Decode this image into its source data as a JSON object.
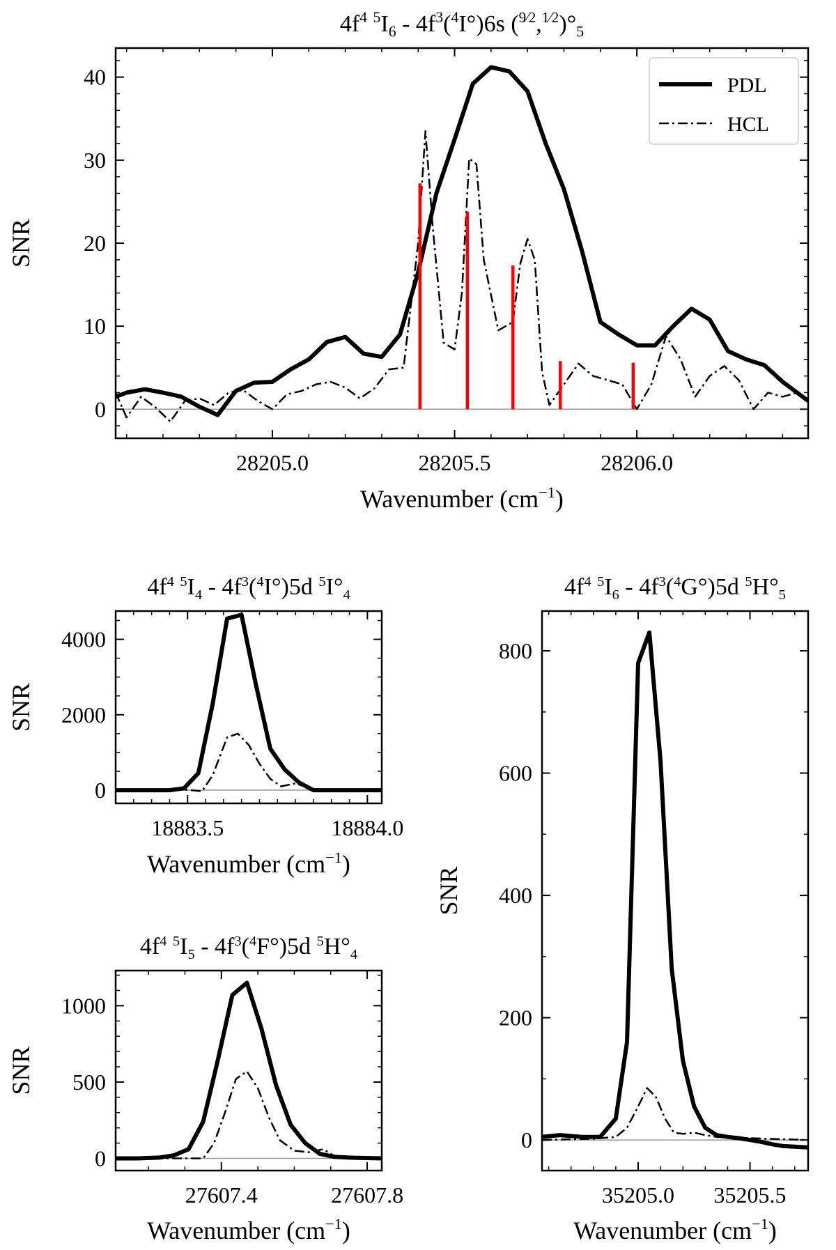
{
  "chart_data": [
    {
      "id": "top",
      "type": "line",
      "title": {
        "parts": [
          [
            "4f",
            ""
          ],
          [
            "4",
            "sup"
          ],
          [
            " ",
            ""
          ],
          [
            "5",
            "sup"
          ],
          [
            "I",
            ""
          ],
          [
            "6",
            "sub"
          ],
          [
            " - 4f",
            ""
          ],
          [
            "3",
            "sup"
          ],
          [
            "(",
            ""
          ],
          [
            "4",
            "sup"
          ],
          [
            "I°)6s (",
            ""
          ],
          [
            "9/2",
            "frac"
          ],
          [
            ",",
            ""
          ],
          [
            "1/2",
            "frac"
          ],
          [
            ")°",
            ""
          ],
          [
            "5",
            "sub"
          ]
        ]
      },
      "xlabel": "Wavenumber (cm",
      "xlabel_sup": "−1",
      "xlabel_tail": ")",
      "ylabel": "SNR",
      "xlim": [
        28204.57,
        28206.47
      ],
      "ylim": [
        -3.5,
        43.5
      ],
      "xticks": [
        28205.0,
        28205.5,
        28206.0
      ],
      "xtick_labels": [
        "28205.0",
        "28205.5",
        "28206.0"
      ],
      "yticks": [
        0,
        10,
        20,
        30,
        40
      ],
      "ytick_labels": [
        "0",
        "10",
        "20",
        "30",
        "40"
      ],
      "x_minor_step": 0.1,
      "y_minor_step": 2,
      "legend": {
        "placement": "top-right",
        "entries": [
          {
            "label": "PDL",
            "style": "solid"
          },
          {
            "label": "HCL",
            "style": "dashdot"
          }
        ]
      },
      "series": [
        {
          "name": "PDL",
          "style": "solid",
          "x": [
            28204.57,
            28204.6,
            28204.65,
            28204.7,
            28204.75,
            28204.8,
            28204.85,
            28204.9,
            28204.95,
            28205.0,
            28205.05,
            28205.1,
            28205.15,
            28205.2,
            28205.25,
            28205.3,
            28205.35,
            28205.4,
            28205.45,
            28205.5,
            28205.55,
            28205.6,
            28205.65,
            28205.7,
            28205.75,
            28205.8,
            28205.85,
            28205.9,
            28205.95,
            28206.0,
            28206.05,
            28206.1,
            28206.15,
            28206.2,
            28206.25,
            28206.3,
            28206.35,
            28206.4,
            28206.47
          ],
          "y": [
            1.5,
            2.0,
            2.4,
            2.0,
            1.5,
            0.3,
            -0.7,
            2.2,
            3.2,
            3.3,
            4.8,
            6.0,
            8.1,
            8.7,
            6.7,
            6.3,
            9.0,
            16.5,
            26.0,
            32.5,
            39.2,
            41.2,
            40.7,
            38.3,
            32.0,
            26.5,
            19.0,
            10.5,
            9.0,
            7.7,
            7.7,
            10.0,
            12.1,
            10.8,
            7.0,
            6.0,
            5.3,
            3.3,
            1.0
          ]
        },
        {
          "name": "HCL",
          "style": "dashdot",
          "x": [
            28204.57,
            28204.6,
            28204.64,
            28204.68,
            28204.72,
            28204.76,
            28204.8,
            28204.84,
            28204.88,
            28204.92,
            28204.96,
            28205.0,
            28205.04,
            28205.08,
            28205.12,
            28205.16,
            28205.2,
            28205.24,
            28205.28,
            28205.32,
            28205.36,
            28205.4,
            28205.42,
            28205.44,
            28205.47,
            28205.5,
            28205.52,
            28205.54,
            28205.56,
            28205.58,
            28205.62,
            28205.66,
            28205.68,
            28205.7,
            28205.72,
            28205.74,
            28205.76,
            28205.8,
            28205.84,
            28205.88,
            28205.92,
            28205.96,
            28206.0,
            28206.04,
            28206.08,
            28206.12,
            28206.16,
            28206.2,
            28206.24,
            28206.28,
            28206.32,
            28206.36,
            28206.4,
            28206.44,
            28206.47
          ],
          "y": [
            2.0,
            -1.0,
            1.5,
            0.2,
            -1.5,
            1.0,
            1.3,
            0.5,
            2.0,
            2.3,
            1.0,
            0.0,
            1.8,
            2.2,
            3.0,
            3.3,
            2.6,
            1.3,
            2.5,
            4.8,
            5.0,
            20.0,
            33.5,
            22.0,
            8.0,
            7.2,
            14.0,
            30.2,
            29.5,
            18.0,
            9.5,
            10.5,
            17.5,
            20.5,
            18.0,
            4.5,
            0.5,
            3.0,
            5.5,
            4.0,
            3.5,
            3.0,
            0.0,
            3.0,
            8.8,
            6.0,
            1.5,
            4.0,
            5.2,
            3.5,
            0.0,
            2.0,
            1.5,
            2.0,
            1.2
          ]
        }
      ],
      "markers": {
        "color": "#ff0000",
        "x": [
          28205.405,
          28205.535,
          28205.66,
          28205.79,
          28205.99
        ],
        "y": [
          27.2,
          23.8,
          17.3,
          5.8,
          5.6
        ]
      }
    },
    {
      "id": "left1",
      "type": "line",
      "title": {
        "parts": [
          [
            "4f",
            ""
          ],
          [
            "4",
            "sup"
          ],
          [
            " ",
            ""
          ],
          [
            "5",
            "sup"
          ],
          [
            "I",
            ""
          ],
          [
            "4",
            "sub"
          ],
          [
            " - 4f",
            ""
          ],
          [
            "3",
            "sup"
          ],
          [
            "(",
            ""
          ],
          [
            "4",
            "sup"
          ],
          [
            "I°)5d ",
            ""
          ],
          [
            "5",
            "sup"
          ],
          [
            "I°",
            ""
          ],
          [
            "4",
            "sub"
          ]
        ]
      },
      "xlabel": "Wavenumber (cm",
      "xlabel_sup": "−1",
      "xlabel_tail": ")",
      "ylabel": "SNR",
      "xlim": [
        18883.3,
        18884.04
      ],
      "ylim": [
        -350,
        4750
      ],
      "xticks": [
        18883.5,
        18884.0
      ],
      "xtick_labels": [
        "18883.5",
        "18884.0"
      ],
      "yticks": [
        0,
        2000,
        4000
      ],
      "ytick_labels": [
        "0",
        "2000",
        "4000"
      ],
      "x_minor_step": 0.05,
      "y_minor_step": 500,
      "series": [
        {
          "name": "PDL",
          "style": "solid",
          "x": [
            18883.3,
            18883.35,
            18883.4,
            18883.45,
            18883.49,
            18883.53,
            18883.57,
            18883.61,
            18883.65,
            18883.69,
            18883.73,
            18883.77,
            18883.81,
            18883.85,
            18883.9,
            18883.95,
            18884.04
          ],
          "y": [
            0,
            0,
            0,
            0,
            50,
            450,
            2300,
            4550,
            4650,
            2800,
            1100,
            550,
            200,
            0,
            0,
            0,
            0
          ]
        },
        {
          "name": "HCL",
          "style": "dashdot",
          "x": [
            18883.3,
            18883.45,
            18883.5,
            18883.54,
            18883.57,
            18883.61,
            18883.64,
            18883.67,
            18883.7,
            18883.73,
            18883.76,
            18883.8,
            18883.84,
            18883.9,
            18884.04
          ],
          "y": [
            0,
            0,
            10,
            -30,
            400,
            1400,
            1500,
            1200,
            700,
            300,
            100,
            180,
            50,
            0,
            0
          ]
        }
      ]
    },
    {
      "id": "left2",
      "type": "line",
      "title": {
        "parts": [
          [
            "4f",
            ""
          ],
          [
            "4",
            "sup"
          ],
          [
            " ",
            ""
          ],
          [
            "5",
            "sup"
          ],
          [
            "I",
            ""
          ],
          [
            "5",
            "sub"
          ],
          [
            " - 4f",
            ""
          ],
          [
            "3",
            "sup"
          ],
          [
            "(",
            ""
          ],
          [
            "4",
            "sup"
          ],
          [
            "F°)5d ",
            ""
          ],
          [
            "5",
            "sup"
          ],
          [
            "H°",
            ""
          ],
          [
            "4",
            "sub"
          ]
        ]
      },
      "xlabel": "Wavenumber (cm",
      "xlabel_sup": "−1",
      "xlabel_tail": ")",
      "ylabel": "SNR",
      "xlim": [
        27607.11,
        27607.84
      ],
      "ylim": [
        -80,
        1230
      ],
      "xticks": [
        27607.4,
        27607.8
      ],
      "xtick_labels": [
        "27607.4",
        "27607.8"
      ],
      "yticks": [
        0,
        500,
        1000
      ],
      "ytick_labels": [
        "0",
        "500",
        "1000"
      ],
      "x_minor_step": 0.1,
      "y_minor_step": 100,
      "series": [
        {
          "name": "PDL",
          "style": "solid",
          "x": [
            27607.11,
            27607.17,
            27607.23,
            27607.27,
            27607.31,
            27607.35,
            27607.39,
            27607.43,
            27607.47,
            27607.51,
            27607.55,
            27607.59,
            27607.63,
            27607.67,
            27607.71,
            27607.75,
            27607.84
          ],
          "y": [
            0,
            0,
            5,
            20,
            60,
            240,
            640,
            1070,
            1150,
            850,
            480,
            220,
            100,
            30,
            10,
            5,
            0
          ]
        },
        {
          "name": "HCL",
          "style": "dashdot",
          "x": [
            27607.11,
            27607.35,
            27607.38,
            27607.41,
            27607.44,
            27607.47,
            27607.5,
            27607.53,
            27607.56,
            27607.6,
            27607.64,
            27607.68,
            27607.72,
            27607.84
          ],
          "y": [
            0,
            0,
            100,
            300,
            520,
            570,
            460,
            270,
            120,
            50,
            40,
            60,
            0,
            0
          ]
        }
      ]
    },
    {
      "id": "right",
      "type": "line",
      "title": {
        "parts": [
          [
            "4f",
            ""
          ],
          [
            "4",
            "sup"
          ],
          [
            " ",
            ""
          ],
          [
            "5",
            "sup"
          ],
          [
            "I",
            ""
          ],
          [
            "6",
            "sub"
          ],
          [
            " - 4f",
            ""
          ],
          [
            "3",
            "sup"
          ],
          [
            "(",
            ""
          ],
          [
            "4",
            "sup"
          ],
          [
            "G°)5d ",
            ""
          ],
          [
            "5",
            "sup"
          ],
          [
            "H°",
            ""
          ],
          [
            "5",
            "sub"
          ]
        ]
      },
      "xlabel": "Wavenumber (cm",
      "xlabel_sup": "−1",
      "xlabel_tail": ")",
      "ylabel": "SNR",
      "xlim": [
        35204.57,
        35205.76
      ],
      "ylim": [
        -50,
        865
      ],
      "xticks": [
        35205.0,
        35205.5
      ],
      "xtick_labels": [
        "35205.0",
        "35205.5"
      ],
      "yticks": [
        0,
        200,
        400,
        600,
        800
      ],
      "ytick_labels": [
        "0",
        "200",
        "400",
        "600",
        "800"
      ],
      "x_minor_step": 0.1,
      "y_minor_step": 100,
      "series": [
        {
          "name": "PDL",
          "style": "solid",
          "x": [
            35204.57,
            35204.65,
            35204.75,
            35204.83,
            35204.9,
            35204.95,
            35205.0,
            35205.05,
            35205.1,
            35205.15,
            35205.2,
            35205.25,
            35205.3,
            35205.35,
            35205.4,
            35205.45,
            35205.5,
            35205.55,
            35205.6,
            35205.65,
            35205.76
          ],
          "y": [
            5,
            8,
            5,
            5,
            35,
            160,
            780,
            830,
            620,
            280,
            130,
            55,
            20,
            8,
            5,
            3,
            0,
            -3,
            -7,
            -10,
            -12
          ]
        },
        {
          "name": "HCL",
          "style": "dashdot",
          "x": [
            35204.57,
            35204.8,
            35204.9,
            35204.95,
            35205.0,
            35205.04,
            35205.08,
            35205.12,
            35205.16,
            35205.2,
            35205.25,
            35205.3,
            35205.35,
            35205.5,
            35205.76
          ],
          "y": [
            0,
            2,
            5,
            20,
            55,
            85,
            70,
            35,
            12,
            10,
            12,
            8,
            5,
            3,
            0
          ]
        }
      ]
    }
  ]
}
